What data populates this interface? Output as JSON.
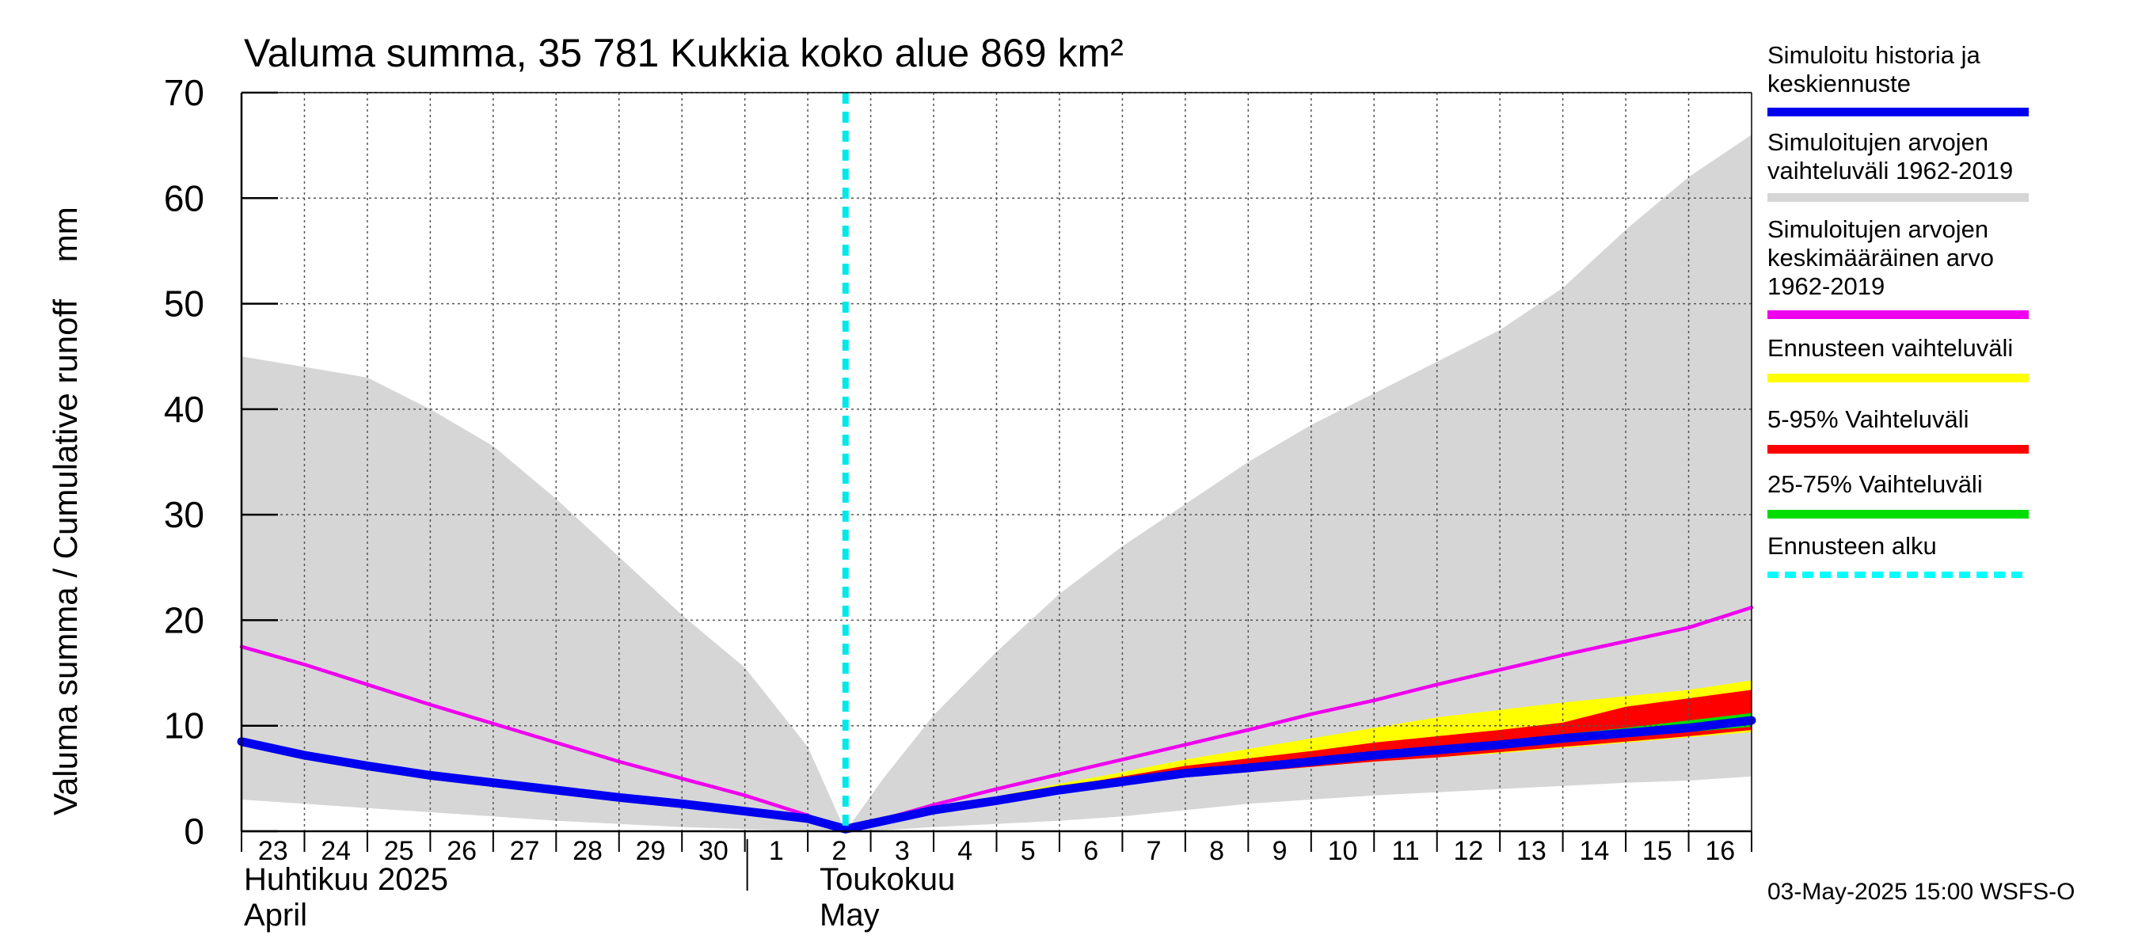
{
  "chart_data": {
    "type": "area",
    "title": "Valuma summa, 35 781 Kukkia koko alue 869 km²",
    "ylabel": "Valuma summa / Cumulative runoff    mm",
    "ylim": [
      0,
      70
    ],
    "yticks": [
      0,
      10,
      20,
      30,
      40,
      50,
      60,
      70
    ],
    "xlim_days": [
      0,
      24
    ],
    "day_labels": [
      {
        "d": 0,
        "label": "23"
      },
      {
        "d": 1,
        "label": "24"
      },
      {
        "d": 2,
        "label": "25"
      },
      {
        "d": 3,
        "label": "26"
      },
      {
        "d": 4,
        "label": "27"
      },
      {
        "d": 5,
        "label": "28"
      },
      {
        "d": 6,
        "label": "29"
      },
      {
        "d": 7,
        "label": "30"
      },
      {
        "d": 8,
        "label": "1"
      },
      {
        "d": 9,
        "label": "2"
      },
      {
        "d": 10,
        "label": "3"
      },
      {
        "d": 11,
        "label": "4"
      },
      {
        "d": 12,
        "label": "5"
      },
      {
        "d": 13,
        "label": "6"
      },
      {
        "d": 14,
        "label": "7"
      },
      {
        "d": 15,
        "label": "8"
      },
      {
        "d": 16,
        "label": "9"
      },
      {
        "d": 17,
        "label": "10"
      },
      {
        "d": 18,
        "label": "11"
      },
      {
        "d": 19,
        "label": "12"
      },
      {
        "d": 20,
        "label": "13"
      },
      {
        "d": 21,
        "label": "14"
      },
      {
        "d": 22,
        "label": "15"
      },
      {
        "d": 23,
        "label": "16"
      }
    ],
    "month_labels": [
      {
        "d": 0,
        "line1": "Huhtikuu  2025",
        "line2": "April"
      },
      {
        "d": 9.15,
        "line1": "Toukokuu",
        "line2": "May"
      }
    ],
    "month_divider_d": 8,
    "forecast_start_d": 9.6,
    "grid": true,
    "series": [
      {
        "name": "Simuloitujen arvojen vaihteluväli 1962-2019",
        "kind": "band",
        "color": "#d6d6d6",
        "x": [
          0,
          1,
          2,
          3,
          4,
          5,
          6,
          7,
          8,
          9,
          9.6,
          10.2,
          11,
          12,
          13,
          14,
          15,
          16,
          17,
          18,
          19,
          20,
          21,
          22,
          23,
          24
        ],
        "upper": [
          45,
          44,
          43,
          40,
          36.5,
          31.5,
          26,
          20.5,
          15.5,
          8,
          0,
          5,
          11,
          17,
          22.5,
          27,
          31,
          35,
          38.5,
          41.5,
          44.5,
          47.5,
          51.5,
          57,
          62,
          66
        ],
        "lower": [
          3,
          2.6,
          2.2,
          1.8,
          1.4,
          1.0,
          0.7,
          0.4,
          0.2,
          0.05,
          0,
          0.1,
          0.4,
          0.7,
          1.0,
          1.4,
          2.0,
          2.6,
          3.0,
          3.4,
          3.7,
          4.0,
          4.3,
          4.6,
          4.8,
          5.2
        ]
      },
      {
        "name": "Ennusteen vaihteluväli",
        "kind": "band",
        "color": "#ffff00",
        "x": [
          9.6,
          11,
          12,
          13,
          14,
          15,
          16,
          17,
          18,
          19,
          20,
          21,
          22,
          23,
          24
        ],
        "upper": [
          0,
          2.3,
          3.3,
          4.5,
          5.6,
          6.8,
          7.8,
          8.8,
          9.8,
          10.8,
          11.5,
          12.2,
          12.8,
          13.4,
          14.3
        ],
        "lower": [
          0,
          1.9,
          2.8,
          3.7,
          4.4,
          5.1,
          5.6,
          6.1,
          6.6,
          7.0,
          7.4,
          7.9,
          8.4,
          8.9,
          9.4
        ]
      },
      {
        "name": "5-95% Vaihteluväli",
        "kind": "band",
        "color": "#ff0000",
        "x": [
          9.6,
          11,
          12,
          13,
          14,
          15,
          16,
          17,
          18,
          19,
          20,
          21,
          22,
          23,
          24
        ],
        "upper": [
          0,
          2.2,
          3.1,
          4.2,
          5.2,
          6.2,
          6.9,
          7.6,
          8.4,
          9.0,
          9.6,
          10.3,
          11.8,
          12.6,
          13.4
        ],
        "lower": [
          0,
          1.9,
          2.8,
          3.7,
          4.4,
          5.1,
          5.6,
          6.1,
          6.6,
          7.0,
          7.5,
          8.0,
          8.5,
          9.0,
          9.6
        ]
      },
      {
        "name": "25-75% Vaihteluväli",
        "kind": "band",
        "color": "#00dd00",
        "x": [
          9.6,
          11,
          12,
          13,
          14,
          15,
          16,
          17,
          18,
          19,
          20,
          21,
          22,
          23,
          24
        ],
        "upper": [
          0,
          2.05,
          2.95,
          3.95,
          4.8,
          5.6,
          6.2,
          6.8,
          7.4,
          8.0,
          8.6,
          9.2,
          9.8,
          10.5,
          11.2
        ],
        "lower": [
          0,
          1.95,
          2.85,
          3.8,
          4.6,
          5.3,
          5.9,
          6.4,
          6.9,
          7.4,
          7.9,
          8.4,
          8.9,
          9.4,
          9.9
        ]
      },
      {
        "name": "Simuloitujen arvojen keskimääräinen arvo 1962-2019",
        "kind": "line",
        "color": "#ee00ee",
        "x": [
          0,
          1,
          2,
          3,
          4,
          5,
          6,
          7,
          8,
          9,
          9.6,
          10,
          11,
          12,
          13,
          14,
          15,
          16,
          17,
          18,
          19,
          20,
          21,
          22,
          23,
          24
        ],
        "y": [
          17.5,
          15.8,
          13.9,
          12.0,
          10.2,
          8.4,
          6.6,
          5.0,
          3.4,
          1.5,
          0,
          0.8,
          2.5,
          4.0,
          5.4,
          6.8,
          8.2,
          9.6,
          11.1,
          12.4,
          13.9,
          15.3,
          16.7,
          18.0,
          19.3,
          21.2
        ]
      },
      {
        "name": "Simuloitu historia ja keskiennuste",
        "kind": "line",
        "color": "#0000ee",
        "x": [
          0,
          1,
          2,
          3,
          4,
          5,
          6,
          7,
          8,
          9,
          9.6,
          11,
          12,
          13,
          14,
          15,
          16,
          17,
          18,
          19,
          20,
          21,
          22,
          23,
          24
        ],
        "y": [
          8.5,
          7.2,
          6.2,
          5.3,
          4.6,
          3.9,
          3.2,
          2.6,
          1.9,
          1.2,
          0.2,
          2.0,
          2.9,
          3.9,
          4.7,
          5.5,
          6.0,
          6.6,
          7.2,
          7.7,
          8.2,
          8.8,
          9.3,
          9.8,
          10.5
        ]
      }
    ],
    "legend": [
      {
        "text": "Simuloitu historia ja\nkeskiennuste",
        "color": "#0000ee",
        "style": "solid"
      },
      {
        "text": "Simuloitujen arvojen\nvaihteluväli 1962-2019",
        "color": "#d6d6d6",
        "style": "solid"
      },
      {
        "text": "Simuloitujen arvojen\nkeskimääräinen arvo\n   1962-2019",
        "color": "#ee00ee",
        "style": "solid"
      },
      {
        "text": "Ennusteen vaihteluväli",
        "color": "#ffff00",
        "style": "solid"
      },
      {
        "text": "5-95% Vaihteluväli",
        "color": "#ff0000",
        "style": "solid"
      },
      {
        "text": "25-75% Vaihteluväli",
        "color": "#00dd00",
        "style": "solid"
      },
      {
        "text": "Ennusteen alku",
        "color": "#00ffff",
        "style": "dashed"
      }
    ],
    "legend_position": "right"
  },
  "colors": {
    "forecast_start": "#00e8e8"
  },
  "footer": "03-May-2025 15:00 WSFS-O"
}
